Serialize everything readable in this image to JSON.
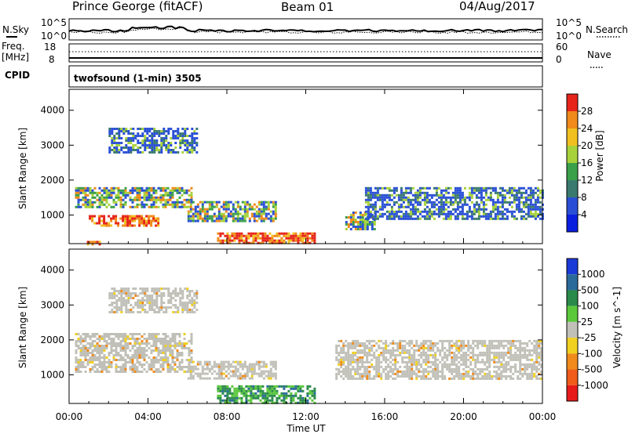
{
  "header": {
    "title": "Prince George (fitACF)",
    "beam": "Beam 01",
    "date": "04/Aug/2017"
  },
  "status_panels": {
    "left_labels": [
      "N.Sky",
      "Freq.",
      "[MHz]",
      "CPID"
    ],
    "right_labels": [
      "N.Search",
      "Nave"
    ],
    "nsky_ticks": [
      "10^5",
      "10^0"
    ],
    "nsearch_ticks": [
      "10^5",
      "10^0"
    ],
    "freq_ticks": [
      "18",
      "8"
    ],
    "nave_ticks": [
      "60",
      "0"
    ],
    "cpid_text": "twofsound (1-min) 3505"
  },
  "time_axis": {
    "label": "Time UT",
    "ticks": [
      "00:00",
      "04:00",
      "08:00",
      "12:00",
      "16:00",
      "20:00",
      "00:00"
    ]
  },
  "chart_data": [
    {
      "type": "heatmap",
      "name": "power",
      "ylabel": "Slant Range [km]",
      "yticks": [
        1000,
        2000,
        3000,
        4000
      ],
      "ylim": [
        180,
        4600
      ],
      "xlim_hours": [
        0,
        24
      ],
      "colorbar_label": "Power [dB]",
      "colorbar_ticks": [
        "4",
        "8",
        "12",
        "16",
        "20",
        "24",
        "28"
      ],
      "colorbar_colors": [
        "#0a1ee0",
        "#2a4fd6",
        "#3a7a6e",
        "#3aa04a",
        "#a8d23a",
        "#f0c020",
        "#f08a1a",
        "#e6241a"
      ],
      "regions": [
        {
          "t": [
            0.9,
            1.5
          ],
          "r": [
            180,
            260
          ],
          "level": "strong"
        },
        {
          "t": [
            0.3,
            6.2
          ],
          "r": [
            1200,
            1800
          ],
          "level": "mid"
        },
        {
          "t": [
            1.0,
            4.5
          ],
          "r": [
            700,
            1000
          ],
          "level": "strong"
        },
        {
          "t": [
            2.0,
            6.5
          ],
          "r": [
            2800,
            3500
          ],
          "level": "weak"
        },
        {
          "t": [
            6.0,
            10.5
          ],
          "r": [
            800,
            1400
          ],
          "level": "mid"
        },
        {
          "t": [
            7.5,
            12.5
          ],
          "r": [
            180,
            500
          ],
          "level": "strong"
        },
        {
          "t": [
            14.0,
            15.5
          ],
          "r": [
            600,
            1100
          ],
          "level": "mid"
        },
        {
          "t": [
            15.0,
            24.0
          ],
          "r": [
            900,
            1800
          ],
          "level": "weak"
        }
      ]
    },
    {
      "type": "heatmap",
      "name": "velocity",
      "ylabel": "Slant Range [km]",
      "yticks": [
        1000,
        2000,
        3000,
        4000
      ],
      "ylim": [
        180,
        4600
      ],
      "xlim_hours": [
        0,
        24
      ],
      "colorbar_label": "Velocity [m s^-1]",
      "colorbar_ticks": [
        "1000",
        "500",
        "100",
        "25",
        "-25",
        "-100",
        "-500",
        "-1000"
      ],
      "colorbar_colors": [
        "#1a3ad8",
        "#2a6a9a",
        "#2a8a4a",
        "#5ac83a",
        "#c0c0b8",
        "#f0d020",
        "#f08a1a",
        "#f05a1a",
        "#e61a1a"
      ],
      "regions": [
        {
          "t": [
            0.3,
            6.2
          ],
          "r": [
            1100,
            2200
          ],
          "level": "ground"
        },
        {
          "t": [
            2.0,
            6.5
          ],
          "r": [
            2800,
            3500
          ],
          "level": "ground"
        },
        {
          "t": [
            6.0,
            10.5
          ],
          "r": [
            900,
            1400
          ],
          "level": "ground"
        },
        {
          "t": [
            7.5,
            12.5
          ],
          "r": [
            180,
            700
          ],
          "level": "positive"
        },
        {
          "t": [
            13.5,
            24.0
          ],
          "r": [
            900,
            2000
          ],
          "level": "ground"
        }
      ]
    }
  ]
}
